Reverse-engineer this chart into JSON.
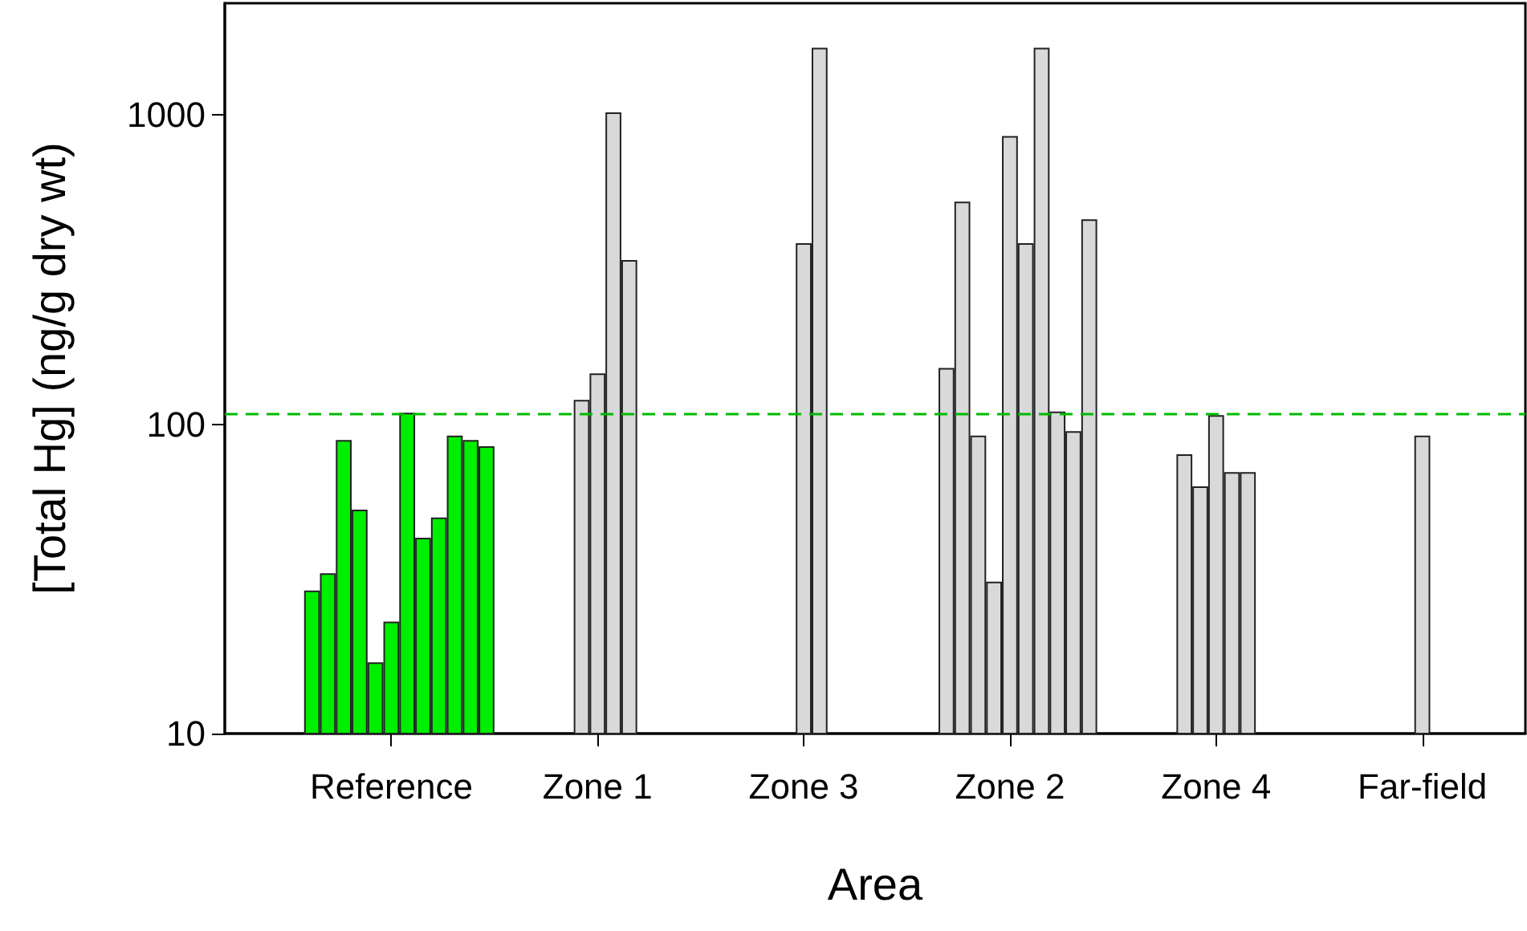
{
  "chart_data": {
    "type": "bar",
    "xlabel": "Area",
    "ylabel": "[Total Hg] (ng/g dry wt)",
    "log": true,
    "ylim": [
      10,
      2300
    ],
    "yticks": [
      10,
      100,
      1000
    ],
    "categories": [
      null,
      null,
      null,
      null,
      null,
      null,
      null,
      null,
      null,
      null,
      "Reference",
      null,
      null,
      null,
      null,
      null,
      null,
      null,
      null,
      null,
      null,
      null,
      null,
      "Zone 1",
      null,
      null,
      null,
      null,
      null,
      null,
      null,
      null,
      null,
      null,
      null,
      null,
      "Zone 3",
      null,
      null,
      null,
      null,
      null,
      null,
      null,
      null,
      null,
      null,
      null,
      null,
      "Zone 2",
      null,
      null,
      null,
      null,
      null,
      null,
      null,
      null,
      null,
      null,
      null,
      null,
      "Zone 4",
      null,
      null,
      null,
      null,
      null,
      null,
      null,
      null,
      null,
      null,
      null,
      null,
      "Far-field",
      null,
      null,
      null,
      null,
      null,
      null
    ],
    "values": [
      null,
      null,
      null,
      null,
      null,
      29,
      33,
      89,
      53,
      17,
      23,
      109,
      43,
      50,
      92,
      89,
      85,
      null,
      null,
      null,
      null,
      null,
      120,
      146,
      1020,
      340,
      null,
      null,
      null,
      null,
      null,
      null,
      null,
      null,
      null,
      null,
      385,
      1650,
      null,
      null,
      null,
      null,
      null,
      null,
      null,
      152,
      525,
      92,
      31,
      855,
      385,
      1650,
      110,
      95,
      460,
      null,
      null,
      null,
      null,
      null,
      80,
      63,
      107,
      70,
      70,
      null,
      null,
      null,
      null,
      null,
      null,
      null,
      null,
      null,
      null,
      92,
      null,
      null,
      null,
      null,
      null,
      null
    ],
    "colors": [
      null,
      null,
      null,
      null,
      null,
      "#00ee00",
      "#00ee00",
      "#00ee00",
      "#00ee00",
      "#00ee00",
      "#00ee00",
      "#00ee00",
      "#00ee00",
      "#00ee00",
      "#00ee00",
      "#00ee00",
      "#00ee00",
      null,
      null,
      null,
      null,
      null,
      "#d9d9d9",
      "#d9d9d9",
      "#d9d9d9",
      "#d9d9d9",
      null,
      null,
      null,
      null,
      null,
      null,
      null,
      null,
      null,
      null,
      "#d9d9d9",
      "#d9d9d9",
      null,
      null,
      null,
      null,
      null,
      null,
      null,
      "#d9d9d9",
      "#d9d9d9",
      "#d9d9d9",
      "#d9d9d9",
      "#d9d9d9",
      "#d9d9d9",
      "#d9d9d9",
      "#d9d9d9",
      "#d9d9d9",
      "#d9d9d9",
      null,
      null,
      null,
      null,
      null,
      "#d9d9d9",
      "#d9d9d9",
      "#d9d9d9",
      "#d9d9d9",
      "#d9d9d9",
      null,
      null,
      null,
      null,
      null,
      null,
      null,
      null,
      null,
      null,
      "#d9d9d9",
      null,
      null,
      null,
      null,
      null,
      null
    ],
    "ref_lines": [
      {
        "axis": "y",
        "value": 108,
        "color": "#00bb00",
        "line_style": "dashed"
      }
    ]
  }
}
